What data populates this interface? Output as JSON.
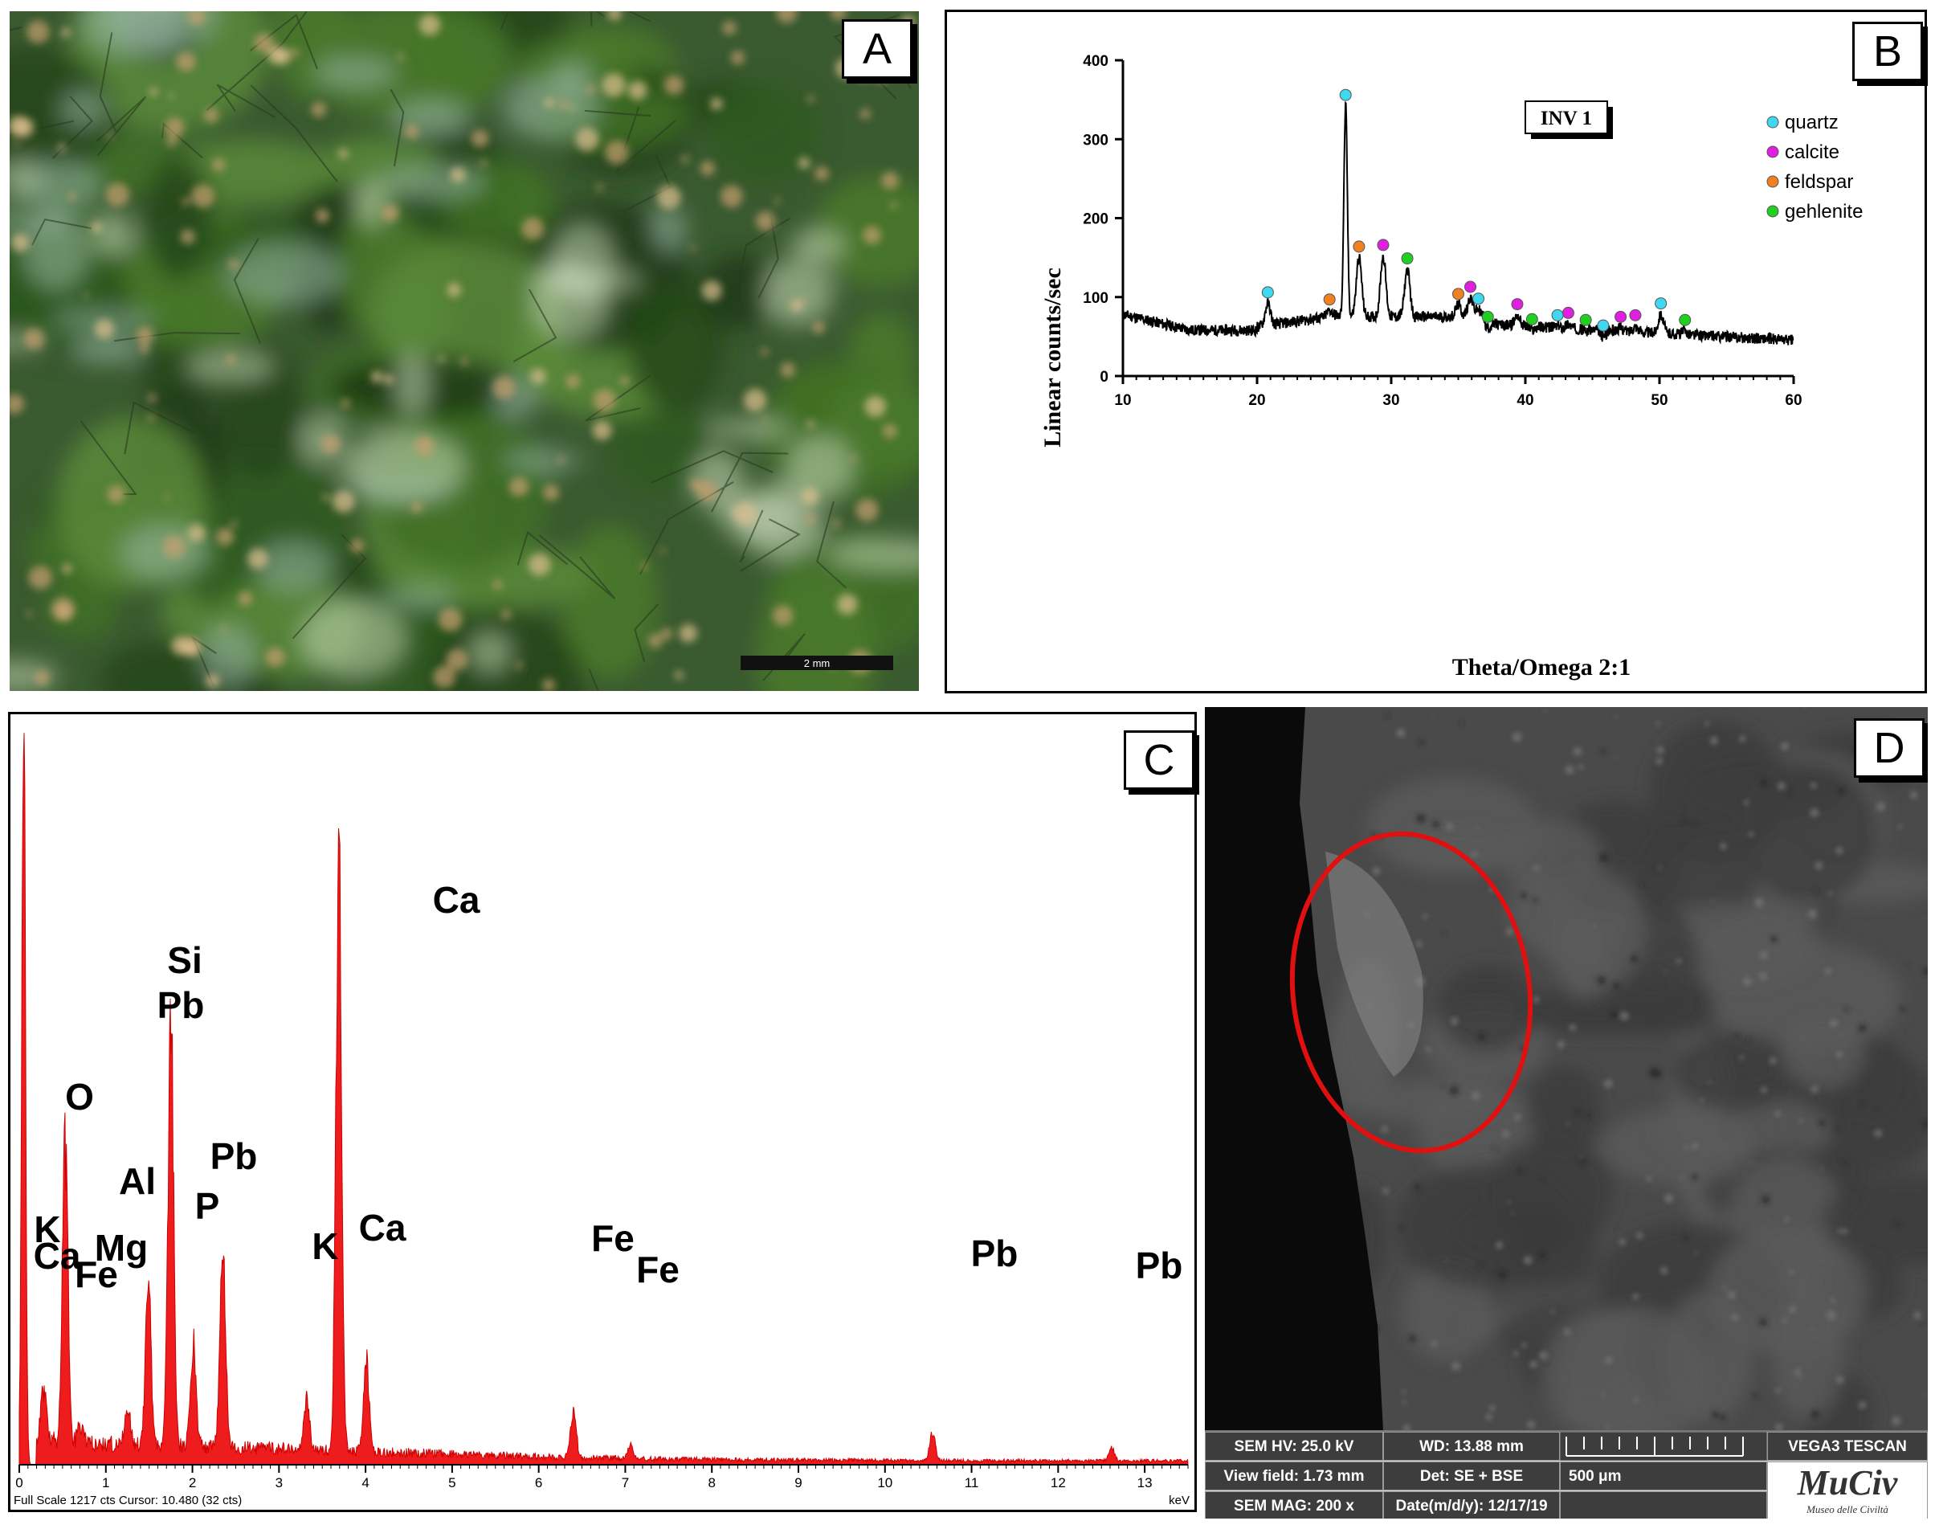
{
  "panels": {
    "a": {
      "letter": "A",
      "scale_label": "2 mm"
    },
    "b": {
      "letter": "B"
    },
    "c": {
      "letter": "C"
    },
    "d": {
      "letter": "D"
    }
  },
  "xrd": {
    "title": "INV 1",
    "xlabel": "Theta/Omega 2:1",
    "ylabel": "Linear counts/sec",
    "xticks": [
      "10",
      "20",
      "30",
      "40",
      "50",
      "60"
    ],
    "yticks": [
      "0",
      "100",
      "200",
      "300",
      "400"
    ],
    "legend": [
      {
        "name": "quartz",
        "color": "#40d8f0"
      },
      {
        "name": "calcite",
        "color": "#e020e0"
      },
      {
        "name": "feldspar",
        "color": "#f08020"
      },
      {
        "name": "gehlenite",
        "color": "#20d020"
      }
    ]
  },
  "eds": {
    "footer_left": "Full Scale 1217 cts Cursor: 10.480  (32 cts)",
    "footer_right": "keV",
    "xticks": [
      "0",
      "1",
      "2",
      "3",
      "4",
      "5",
      "6",
      "7",
      "8",
      "9",
      "10",
      "11",
      "12",
      "13"
    ],
    "labels": [
      "Ca",
      "Si",
      "Pb",
      "O",
      "Al",
      "Pb",
      "P",
      "K",
      "Ca",
      "Mg",
      "Fe",
      "K",
      "Ca",
      "Fe",
      "Fe",
      "Pb",
      "Pb"
    ]
  },
  "sem": {
    "hv": "SEM HV: 25.0 kV",
    "wd": "WD: 13.88 mm",
    "view_field": "View field: 1.73 mm",
    "det": "Det: SE + BSE",
    "mag": "SEM MAG: 200 x",
    "date": "Date(m/d/y): 12/17/19",
    "scale": "500 μm",
    "instrument": "VEGA3 TESCAN",
    "logo": "MuCiv",
    "logo_sub": "Museo delle Civiltà"
  },
  "chart_data": [
    {
      "type": "line",
      "title": "INV 1",
      "xlabel": "Theta/Omega 2:1",
      "ylabel": "Linear counts/sec",
      "xlim": [
        10,
        60
      ],
      "ylim": [
        0,
        400
      ],
      "grid": false,
      "legend_position": "top-right",
      "peaks": [
        {
          "x": 20.8,
          "y": 106,
          "phase": "quartz"
        },
        {
          "x": 25.4,
          "y": 97,
          "phase": "feldspar"
        },
        {
          "x": 26.6,
          "y": 356,
          "phase": "quartz"
        },
        {
          "x": 27.6,
          "y": 164,
          "phase": "feldspar"
        },
        {
          "x": 29.4,
          "y": 166,
          "phase": "calcite"
        },
        {
          "x": 31.2,
          "y": 149,
          "phase": "gehlenite"
        },
        {
          "x": 35.0,
          "y": 104,
          "phase": "feldspar"
        },
        {
          "x": 35.9,
          "y": 113,
          "phase": "calcite"
        },
        {
          "x": 36.5,
          "y": 98,
          "phase": "quartz"
        },
        {
          "x": 37.2,
          "y": 75,
          "phase": "gehlenite"
        },
        {
          "x": 39.4,
          "y": 91,
          "phase": "calcite"
        },
        {
          "x": 40.5,
          "y": 72,
          "phase": "gehlenite"
        },
        {
          "x": 42.4,
          "y": 77,
          "phase": "quartz"
        },
        {
          "x": 43.2,
          "y": 80,
          "phase": "calcite"
        },
        {
          "x": 44.5,
          "y": 71,
          "phase": "gehlenite"
        },
        {
          "x": 45.8,
          "y": 64,
          "phase": "quartz"
        },
        {
          "x": 47.1,
          "y": 75,
          "phase": "calcite"
        },
        {
          "x": 48.2,
          "y": 77,
          "phase": "calcite"
        },
        {
          "x": 50.1,
          "y": 92,
          "phase": "quartz"
        },
        {
          "x": 51.9,
          "y": 71,
          "phase": "gehlenite"
        }
      ]
    },
    {
      "type": "bar",
      "xlabel": "keV",
      "xlim": [
        0,
        13.5
      ],
      "full_scale_cts": 1217,
      "peaks": [
        {
          "x": 0.05,
          "y": 1217,
          "label": ""
        },
        {
          "x": 0.28,
          "y": 85,
          "label": "K Ca"
        },
        {
          "x": 0.53,
          "y": 480,
          "label": "O"
        },
        {
          "x": 0.71,
          "y": 30,
          "label": "Fe"
        },
        {
          "x": 1.25,
          "y": 60,
          "label": "Mg"
        },
        {
          "x": 1.49,
          "y": 270,
          "label": "Al"
        },
        {
          "x": 1.75,
          "y": 700,
          "label": "Si Pb"
        },
        {
          "x": 2.01,
          "y": 170,
          "label": "P"
        },
        {
          "x": 2.35,
          "y": 340,
          "label": "Pb"
        },
        {
          "x": 3.32,
          "y": 85,
          "label": "K"
        },
        {
          "x": 3.69,
          "y": 955,
          "label": "Ca"
        },
        {
          "x": 4.01,
          "y": 150,
          "label": "Ca"
        },
        {
          "x": 6.4,
          "y": 80,
          "label": "Fe"
        },
        {
          "x": 7.06,
          "y": 22,
          "label": "Fe"
        },
        {
          "x": 10.55,
          "y": 45,
          "label": "Pb"
        },
        {
          "x": 12.62,
          "y": 20,
          "label": "Pb"
        }
      ]
    }
  ]
}
